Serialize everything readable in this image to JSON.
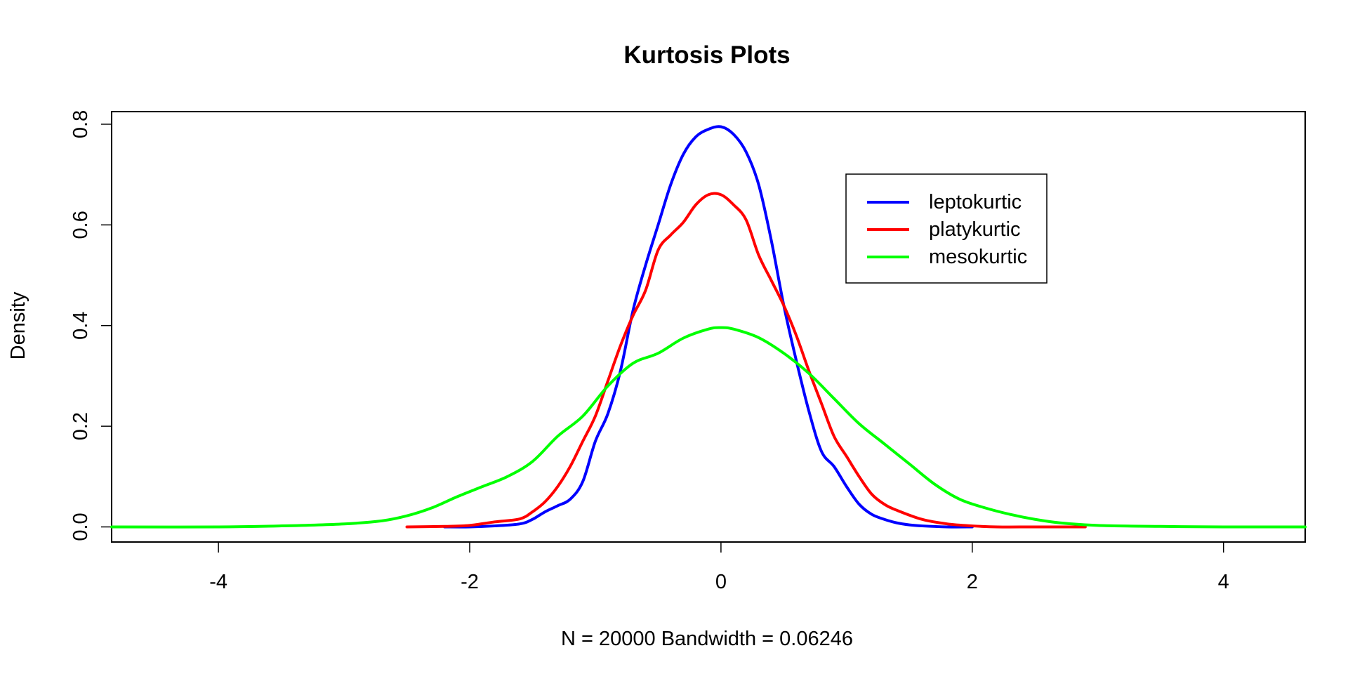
{
  "chart_data": {
    "type": "line",
    "title": "Kurtosis Plots",
    "xlabel": "N = 20000   Bandwidth = 0.06246",
    "ylabel": "Density",
    "xlim": [
      -4.85,
      4.65
    ],
    "ylim": [
      -0.03,
      0.825
    ],
    "x_ticks": [
      -4,
      -2,
      0,
      2,
      4
    ],
    "x_tick_labels": [
      "-4",
      "-2",
      "0",
      "2",
      "4"
    ],
    "y_ticks": [
      0.0,
      0.2,
      0.4,
      0.6,
      0.8
    ],
    "y_tick_labels": [
      "0.0",
      "0.2",
      "0.4",
      "0.6",
      "0.8"
    ],
    "grid": false,
    "legend_position": "top-right",
    "series": [
      {
        "name": "leptokurtic",
        "color": "#0000ff",
        "x": [
          -2.2,
          -2.0,
          -1.8,
          -1.6,
          -1.5,
          -1.4,
          -1.3,
          -1.2,
          -1.1,
          -1.0,
          -0.9,
          -0.8,
          -0.7,
          -0.6,
          -0.5,
          -0.4,
          -0.3,
          -0.2,
          -0.1,
          0.0,
          0.1,
          0.2,
          0.3,
          0.4,
          0.5,
          0.6,
          0.7,
          0.8,
          0.9,
          1.0,
          1.1,
          1.2,
          1.3,
          1.4,
          1.5,
          1.6,
          1.8,
          2.0
        ],
        "y": [
          0.0,
          0.0,
          0.002,
          0.006,
          0.015,
          0.03,
          0.042,
          0.055,
          0.09,
          0.17,
          0.225,
          0.31,
          0.43,
          0.52,
          0.6,
          0.68,
          0.74,
          0.775,
          0.79,
          0.795,
          0.78,
          0.745,
          0.68,
          0.57,
          0.44,
          0.33,
          0.23,
          0.15,
          0.12,
          0.08,
          0.045,
          0.025,
          0.015,
          0.008,
          0.004,
          0.002,
          0.0,
          0.0
        ]
      },
      {
        "name": "platykurtic",
        "color": "#ff0000",
        "x": [
          -2.5,
          -2.2,
          -2.0,
          -1.8,
          -1.6,
          -1.5,
          -1.4,
          -1.3,
          -1.2,
          -1.1,
          -1.0,
          -0.9,
          -0.8,
          -0.7,
          -0.6,
          -0.5,
          -0.4,
          -0.3,
          -0.2,
          -0.1,
          0.0,
          0.1,
          0.2,
          0.3,
          0.4,
          0.5,
          0.6,
          0.7,
          0.8,
          0.9,
          1.0,
          1.1,
          1.2,
          1.3,
          1.4,
          1.6,
          1.8,
          2.0,
          2.2,
          2.5,
          2.9
        ],
        "y": [
          0.0,
          0.001,
          0.003,
          0.01,
          0.016,
          0.03,
          0.05,
          0.08,
          0.12,
          0.17,
          0.22,
          0.29,
          0.36,
          0.42,
          0.47,
          0.55,
          0.58,
          0.605,
          0.64,
          0.66,
          0.66,
          0.64,
          0.61,
          0.54,
          0.49,
          0.44,
          0.38,
          0.31,
          0.245,
          0.18,
          0.14,
          0.1,
          0.065,
          0.045,
          0.033,
          0.015,
          0.006,
          0.002,
          0.0,
          0.0,
          0.0
        ]
      },
      {
        "name": "mesokurtic",
        "color": "#00ff00",
        "x": [
          -4.85,
          -4.0,
          -3.5,
          -3.0,
          -2.7,
          -2.5,
          -2.3,
          -2.1,
          -1.9,
          -1.7,
          -1.5,
          -1.3,
          -1.1,
          -0.9,
          -0.7,
          -0.5,
          -0.3,
          -0.1,
          0.0,
          0.1,
          0.3,
          0.5,
          0.7,
          0.9,
          1.1,
          1.3,
          1.5,
          1.7,
          1.9,
          2.1,
          2.3,
          2.5,
          2.7,
          3.0,
          3.5,
          4.0,
          4.65
        ],
        "y": [
          0.0,
          0.0,
          0.002,
          0.006,
          0.012,
          0.022,
          0.038,
          0.06,
          0.08,
          0.1,
          0.13,
          0.18,
          0.22,
          0.28,
          0.325,
          0.345,
          0.375,
          0.393,
          0.396,
          0.393,
          0.376,
          0.345,
          0.305,
          0.255,
          0.205,
          0.165,
          0.125,
          0.085,
          0.055,
          0.038,
          0.025,
          0.015,
          0.008,
          0.003,
          0.001,
          0.0,
          0.0
        ]
      }
    ]
  }
}
